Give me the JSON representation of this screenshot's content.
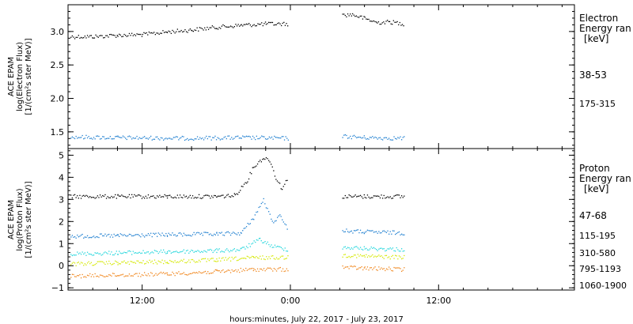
{
  "colors": {
    "black": "#000000",
    "blue": "#1f7fd0",
    "cyan": "#22d6dc",
    "yellow": "#d4e800",
    "orange": "#f0861c"
  },
  "xaxis": {
    "ticks": [
      "12:00",
      "0:00",
      "12:00"
    ],
    "tick_hours": [
      12,
      24,
      36
    ],
    "range_hours": [
      6,
      47
    ],
    "label": "hours:minutes, July 22, 2017 - July 23, 2017"
  },
  "chart_data": [
    {
      "type": "scatter",
      "name": "electron",
      "ylabel": [
        "ACE EPAM",
        "log(Electron Flux)",
        "[1/(cm²s ster MeV)]"
      ],
      "ylim": [
        1.25,
        3.4
      ],
      "yticks": [
        1.5,
        2.0,
        2.5,
        3.0
      ],
      "ytick_labels": [
        "1.5",
        "2.0",
        "2.5",
        "3.0"
      ],
      "legend_title": [
        "Electron",
        "Energy ran",
        "[keV]"
      ],
      "series": [
        {
          "name": "38-53",
          "color": "black",
          "segments": [
            {
              "x": [
                6.2,
                8,
                10,
                12,
                14,
                16,
                18,
                20,
                22,
                23.8
              ],
              "y": [
                2.93,
                2.93,
                2.95,
                2.96,
                3.0,
                3.03,
                3.07,
                3.1,
                3.12,
                3.12
              ]
            },
            {
              "x": [
                28.2,
                29,
                30,
                31,
                32,
                33.2
              ],
              "y": [
                3.25,
                3.26,
                3.2,
                3.14,
                3.15,
                3.12
              ]
            }
          ]
        },
        {
          "name": "175-315",
          "color": "blue",
          "segments": [
            {
              "x": [
                6.2,
                10,
                15,
                20,
                23.8
              ],
              "y": [
                1.43,
                1.42,
                1.41,
                1.42,
                1.41
              ]
            },
            {
              "x": [
                28.2,
                30,
                33.2
              ],
              "y": [
                1.44,
                1.42,
                1.41
              ]
            }
          ]
        }
      ]
    },
    {
      "type": "scatter",
      "name": "proton",
      "ylabel": [
        "ACE EPAM",
        "log(Proton Flux)",
        "[1/(cm²s ster MeV)]"
      ],
      "ylim": [
        -1.1,
        5.3
      ],
      "yticks": [
        -1,
        0,
        1,
        2,
        3,
        4,
        5
      ],
      "ytick_labels": [
        "−1",
        "0",
        "1",
        "2",
        "3",
        "4",
        "5"
      ],
      "legend_title": [
        "Proton",
        "Energy ran",
        "[keV]"
      ],
      "series": [
        {
          "name": "47-68",
          "color": "black",
          "segments": [
            {
              "x": [
                6.2,
                10,
                14,
                18,
                19.5,
                20.5,
                21,
                21.8,
                22.3,
                22.8,
                23.3,
                23.8
              ],
              "y": [
                3.15,
                3.15,
                3.15,
                3.15,
                3.2,
                3.9,
                4.5,
                4.9,
                4.8,
                4.0,
                3.5,
                4.0
              ]
            },
            {
              "x": [
                28.2,
                30,
                33.2
              ],
              "y": [
                3.15,
                3.15,
                3.15
              ]
            }
          ]
        },
        {
          "name": "115-195",
          "color": "blue",
          "segments": [
            {
              "x": [
                6.2,
                10,
                14,
                18,
                20,
                21,
                21.8,
                22.5,
                23.2,
                23.8
              ],
              "y": [
                1.35,
                1.38,
                1.42,
                1.45,
                1.5,
                2.2,
                3.0,
                2.0,
                2.3,
                1.6
              ]
            },
            {
              "x": [
                28.2,
                30,
                33.2
              ],
              "y": [
                1.6,
                1.55,
                1.5
              ]
            }
          ]
        },
        {
          "name": "310-580",
          "color": "cyan",
          "segments": [
            {
              "x": [
                6.2,
                10,
                14,
                18,
                20,
                21.5,
                22.5,
                23.8
              ],
              "y": [
                0.55,
                0.6,
                0.65,
                0.7,
                0.75,
                1.2,
                0.9,
                0.75
              ]
            },
            {
              "x": [
                28.2,
                30,
                33.2
              ],
              "y": [
                0.85,
                0.8,
                0.75
              ]
            }
          ]
        },
        {
          "name": "795-1193",
          "color": "yellow",
          "segments": [
            {
              "x": [
                6.2,
                10,
                14,
                18,
                21,
                23.8
              ],
              "y": [
                0.1,
                0.15,
                0.2,
                0.28,
                0.38,
                0.4
              ]
            },
            {
              "x": [
                28.2,
                30,
                33.2
              ],
              "y": [
                0.5,
                0.45,
                0.4
              ]
            }
          ]
        },
        {
          "name": "1060-1900",
          "color": "orange",
          "segments": [
            {
              "x": [
                6.2,
                10,
                14,
                18,
                21,
                23.8
              ],
              "y": [
                -0.45,
                -0.4,
                -0.35,
                -0.25,
                -0.15,
                -0.15
              ]
            },
            {
              "x": [
                28.2,
                30,
                33.2
              ],
              "y": [
                -0.05,
                -0.1,
                -0.15
              ]
            }
          ]
        }
      ]
    }
  ]
}
